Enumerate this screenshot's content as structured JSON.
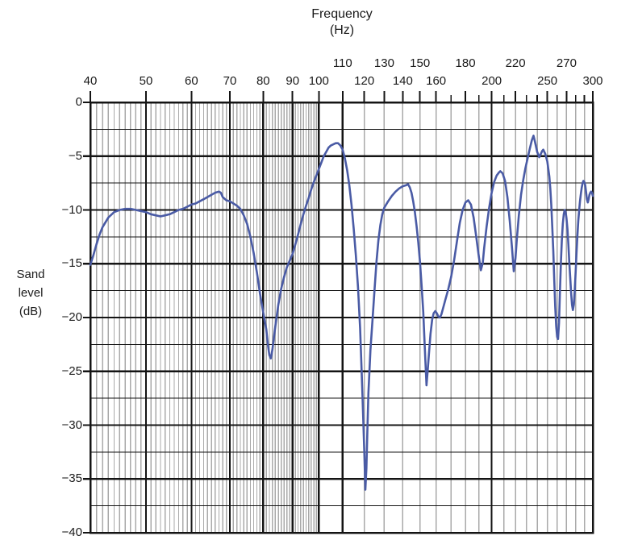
{
  "title": {
    "line1": "Frequency",
    "line2": "(Hz)"
  },
  "y_axis_title_lines": [
    "Sand",
    "level",
    "(dB)"
  ],
  "chart_data": {
    "type": "line",
    "x_scale": "log",
    "xlabel": "Frequency (Hz)",
    "ylabel": "Sand level (dB)",
    "xlim": [
      40,
      300
    ],
    "ylim": [
      -40,
      0
    ],
    "y_ticks": [
      {
        "label": "0",
        "value": 0
      },
      {
        "label": "−5",
        "value": -5
      },
      {
        "label": "−10",
        "value": -10
      },
      {
        "label": "−15",
        "value": -15
      },
      {
        "label": "−20",
        "value": -20
      },
      {
        "label": "−25",
        "value": -25
      },
      {
        "label": "−30",
        "value": -30
      },
      {
        "label": "−35",
        "value": -35
      },
      {
        "label": "−40",
        "value": -40
      }
    ],
    "y_minor_step": 2.5,
    "x_tick_step": 10,
    "x_labels_upper_row": [
      110,
      130,
      150,
      180,
      220,
      270
    ],
    "x_labels_lower_row": [
      40,
      50,
      60,
      70,
      80,
      90,
      100,
      120,
      140,
      160,
      200,
      250,
      300
    ],
    "x_major_gridlines": [
      40,
      50,
      60,
      70,
      80,
      90,
      100,
      110,
      200,
      300
    ],
    "x_minor_gridlines": {
      "fine_1hz_range": [
        41,
        99
      ],
      "coarse_10hz_ranges": [
        [
          120,
          190
        ],
        [
          210,
          290
        ]
      ]
    },
    "grid_minor_color": "#a9a9a9",
    "grid_major_color": "#141414",
    "legend": "none",
    "series": [
      {
        "name": "sand-level-response",
        "color": "#4a5ba5",
        "points": [
          [
            40,
            -15.1
          ],
          [
            40.5,
            -14.2
          ],
          [
            41,
            -13.2
          ],
          [
            41.5,
            -12.3
          ],
          [
            42,
            -11.6
          ],
          [
            43,
            -10.7
          ],
          [
            44,
            -10.2
          ],
          [
            45,
            -10
          ],
          [
            46,
            -9.9
          ],
          [
            47,
            -9.9
          ],
          [
            48,
            -10
          ],
          [
            49,
            -10.1
          ],
          [
            50,
            -10.2
          ],
          [
            51,
            -10.4
          ],
          [
            52,
            -10.5
          ],
          [
            53,
            -10.6
          ],
          [
            54,
            -10.5
          ],
          [
            55,
            -10.4
          ],
          [
            56,
            -10.2
          ],
          [
            57,
            -10
          ],
          [
            58,
            -9.9
          ],
          [
            59,
            -9.7
          ],
          [
            60,
            -9.5
          ],
          [
            61,
            -9.4
          ],
          [
            62,
            -9.2
          ],
          [
            63,
            -9
          ],
          [
            64,
            -8.8
          ],
          [
            65,
            -8.6
          ],
          [
            66,
            -8.4
          ],
          [
            67,
            -8.3
          ],
          [
            67.5,
            -8.4
          ],
          [
            68,
            -8.8
          ],
          [
            69,
            -9.1
          ],
          [
            70,
            -9.2
          ],
          [
            71,
            -9.4
          ],
          [
            72,
            -9.6
          ],
          [
            73,
            -9.9
          ],
          [
            74,
            -10.5
          ],
          [
            75,
            -11.3
          ],
          [
            76,
            -12.5
          ],
          [
            77,
            -14
          ],
          [
            78,
            -15.8
          ],
          [
            79,
            -17.8
          ],
          [
            80,
            -19.5
          ],
          [
            80.5,
            -20.3
          ],
          [
            81,
            -21.1
          ],
          [
            81.5,
            -22.5
          ],
          [
            82,
            -23.5
          ],
          [
            82.5,
            -23.8
          ],
          [
            83,
            -23
          ],
          [
            84,
            -20.8
          ],
          [
            85,
            -18.8
          ],
          [
            86,
            -17.3
          ],
          [
            87,
            -16.2
          ],
          [
            88,
            -15.3
          ],
          [
            89,
            -14.7
          ],
          [
            90,
            -14.1
          ],
          [
            91,
            -13.2
          ],
          [
            92,
            -12.3
          ],
          [
            93,
            -11.3
          ],
          [
            94,
            -10.4
          ],
          [
            95,
            -9.6
          ],
          [
            96,
            -8.9
          ],
          [
            97,
            -8.1
          ],
          [
            98,
            -7.4
          ],
          [
            99,
            -6.8
          ],
          [
            100,
            -6.2
          ],
          [
            101,
            -5.6
          ],
          [
            102,
            -5
          ],
          [
            103,
            -4.6
          ],
          [
            104,
            -4.2
          ],
          [
            105,
            -4
          ],
          [
            106,
            -3.9
          ],
          [
            107,
            -3.8
          ],
          [
            108,
            -3.8
          ],
          [
            109,
            -4
          ],
          [
            110,
            -4.4
          ],
          [
            111,
            -5.2
          ],
          [
            112,
            -6.3
          ],
          [
            113,
            -7.7
          ],
          [
            114,
            -9.5
          ],
          [
            115,
            -11.7
          ],
          [
            116,
            -14.2
          ],
          [
            117,
            -17.2
          ],
          [
            118,
            -21
          ],
          [
            119,
            -26.5
          ],
          [
            120,
            -32.5
          ],
          [
            120.5,
            -36
          ],
          [
            121,
            -34
          ],
          [
            121.5,
            -30.5
          ],
          [
            122,
            -27
          ],
          [
            123,
            -23
          ],
          [
            124,
            -20.3
          ],
          [
            125,
            -17.5
          ],
          [
            126,
            -14.8
          ],
          [
            127,
            -12.8
          ],
          [
            128,
            -11.4
          ],
          [
            129,
            -10.4
          ],
          [
            130,
            -9.8
          ],
          [
            132,
            -9.2
          ],
          [
            134,
            -8.7
          ],
          [
            136,
            -8.3
          ],
          [
            138,
            -8
          ],
          [
            140,
            -7.8
          ],
          [
            142,
            -7.7
          ],
          [
            143,
            -7.6
          ],
          [
            144,
            -7.9
          ],
          [
            145,
            -8.4
          ],
          [
            146,
            -9.2
          ],
          [
            147,
            -10.2
          ],
          [
            148,
            -11.5
          ],
          [
            149,
            -13
          ],
          [
            150,
            -14.8
          ],
          [
            151,
            -17
          ],
          [
            152,
            -19.5
          ],
          [
            153,
            -23
          ],
          [
            154,
            -26.3
          ],
          [
            154.7,
            -25
          ],
          [
            155.5,
            -23.4
          ],
          [
            156.5,
            -21.5
          ],
          [
            157.5,
            -20.2
          ],
          [
            158.5,
            -19.6
          ],
          [
            159.5,
            -19.4
          ],
          [
            160.5,
            -19.6
          ],
          [
            161.5,
            -19.9
          ],
          [
            162.5,
            -20
          ],
          [
            163.5,
            -19.7
          ],
          [
            165,
            -18.9
          ],
          [
            166,
            -18.4
          ],
          [
            168,
            -17.4
          ],
          [
            170,
            -16.2
          ],
          [
            172,
            -14.7
          ],
          [
            174,
            -12.9
          ],
          [
            176,
            -11.2
          ],
          [
            178,
            -10
          ],
          [
            180,
            -9.3
          ],
          [
            182,
            -9.1
          ],
          [
            184,
            -9.5
          ],
          [
            186,
            -10.7
          ],
          [
            188,
            -12.5
          ],
          [
            190,
            -14.4
          ],
          [
            191.5,
            -15.6
          ],
          [
            193,
            -14.9
          ],
          [
            194,
            -13.6
          ],
          [
            196,
            -11.5
          ],
          [
            198,
            -9.8
          ],
          [
            200,
            -8.4
          ],
          [
            202,
            -7.4
          ],
          [
            204,
            -6.8
          ],
          [
            206,
            -6.5
          ],
          [
            207,
            -6.4
          ],
          [
            209,
            -6.6
          ],
          [
            211,
            -7.3
          ],
          [
            213,
            -8.8
          ],
          [
            215,
            -11
          ],
          [
            217,
            -13.6
          ],
          [
            218.5,
            -15.7
          ],
          [
            220,
            -14.5
          ],
          [
            221,
            -13
          ],
          [
            223,
            -10.5
          ],
          [
            225,
            -8.6
          ],
          [
            227,
            -7.2
          ],
          [
            229,
            -6.1
          ],
          [
            231,
            -5.2
          ],
          [
            233,
            -4.3
          ],
          [
            235,
            -3.5
          ],
          [
            236.5,
            -3.1
          ],
          [
            238,
            -3.7
          ],
          [
            240,
            -4.6
          ],
          [
            242,
            -5.1
          ],
          [
            243.5,
            -4.8
          ],
          [
            245,
            -4.5
          ],
          [
            246,
            -4.4
          ],
          [
            248,
            -4.8
          ],
          [
            250,
            -5.5
          ],
          [
            252,
            -6.9
          ],
          [
            253,
            -8
          ],
          [
            254,
            -9.5
          ],
          [
            255,
            -11.5
          ],
          [
            256,
            -13.8
          ],
          [
            257,
            -16.5
          ],
          [
            258,
            -19
          ],
          [
            259,
            -20.8
          ],
          [
            260,
            -21.8
          ],
          [
            261,
            -22
          ],
          [
            262,
            -20.5
          ],
          [
            263,
            -17.5
          ],
          [
            264,
            -14.8
          ],
          [
            265,
            -12.8
          ],
          [
            266,
            -11.3
          ],
          [
            267,
            -10.4
          ],
          [
            268,
            -10
          ],
          [
            269,
            -10.2
          ],
          [
            270,
            -10.8
          ],
          [
            271,
            -11.8
          ],
          [
            272,
            -13.2
          ],
          [
            273,
            -14.8
          ],
          [
            274,
            -16.3
          ],
          [
            275,
            -17.7
          ],
          [
            276,
            -18.8
          ],
          [
            277,
            -19.3
          ],
          [
            278,
            -18.8
          ],
          [
            279,
            -17.5
          ],
          [
            280,
            -15.8
          ],
          [
            281,
            -14
          ],
          [
            282,
            -12.4
          ],
          [
            283,
            -11
          ],
          [
            284,
            -10
          ],
          [
            285,
            -9.2
          ],
          [
            286,
            -8.5
          ],
          [
            287,
            -7.9
          ],
          [
            288,
            -7.5
          ],
          [
            289,
            -7.3
          ],
          [
            290,
            -7.4
          ],
          [
            291,
            -7.7
          ],
          [
            292,
            -8.3
          ],
          [
            293,
            -9
          ],
          [
            294,
            -9.3
          ],
          [
            295,
            -9
          ],
          [
            296,
            -8.6
          ],
          [
            297,
            -8.4
          ],
          [
            298,
            -8.3
          ],
          [
            299,
            -8.4
          ],
          [
            300,
            -8.7
          ]
        ]
      }
    ]
  }
}
